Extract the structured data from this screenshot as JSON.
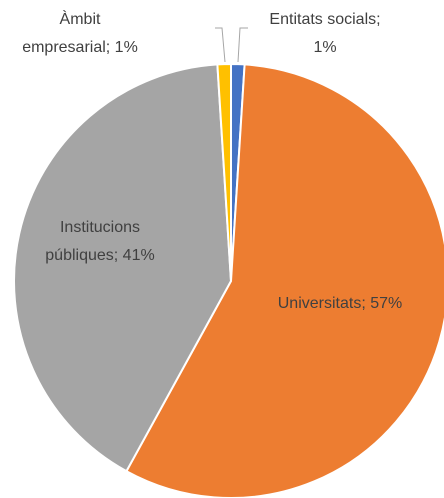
{
  "chart_data": {
    "type": "pie",
    "values": [
      1,
      57,
      41,
      1
    ],
    "value_labels": [
      [
        "Entitats socials;",
        "1%"
      ],
      [
        "Universitats; 57%"
      ],
      [
        "Institucions",
        "públiques; 41%"
      ],
      [
        "Àmbit",
        "empresarial; 1%"
      ]
    ],
    "colors": [
      "#4472c4",
      "#ed7d31",
      "#a5a5a5",
      "#ffc000"
    ]
  }
}
